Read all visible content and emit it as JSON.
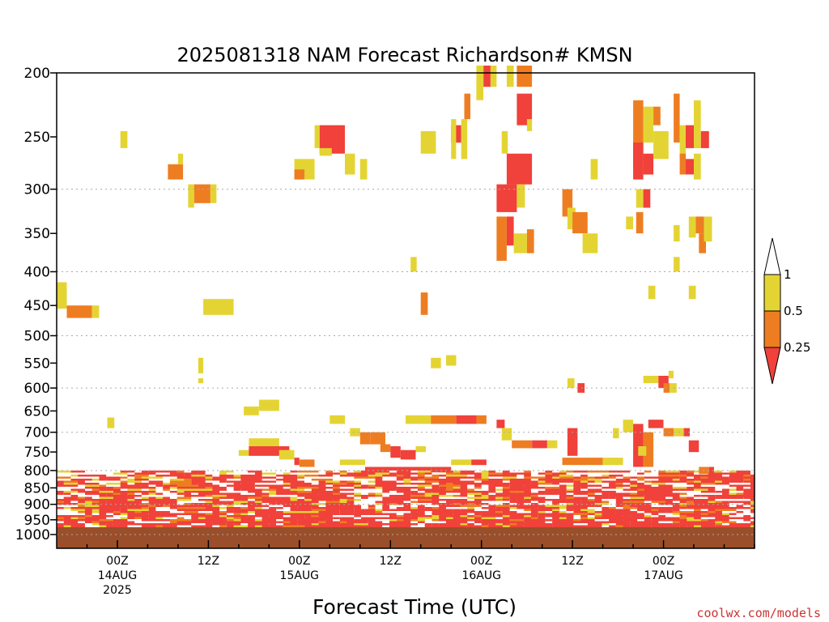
{
  "chart_data": {
    "type": "heatmap",
    "title": "2025081318 NAM Forecast Richardson# KMSN",
    "xlabel": "Forecast Time (UTC)",
    "credit": "coolwx.com/models",
    "y_scale": "log-pressure",
    "ylim": [
      1000,
      200
    ],
    "y_ticks": [
      "200",
      "250",
      "300",
      "350",
      "400",
      "450",
      "500",
      "550",
      "600",
      "650",
      "700",
      "750",
      "800",
      "850",
      "900",
      "950",
      "1000"
    ],
    "y_gridlines": [
      "300",
      "400",
      "500",
      "600",
      "700",
      "800",
      "900",
      "1000"
    ],
    "x_range_hours": [
      -6,
      63
    ],
    "x_ticks": [
      {
        "hour": 0,
        "lines": [
          "00Z",
          "14AUG",
          "2025"
        ]
      },
      {
        "hour": 9,
        "lines": [
          "12Z"
        ]
      },
      {
        "hour": 18,
        "lines": [
          "00Z",
          "15AUG"
        ]
      },
      {
        "hour": 27,
        "lines": [
          "12Z"
        ]
      },
      {
        "hour": 36,
        "lines": [
          "00Z",
          "16AUG"
        ]
      },
      {
        "hour": 45,
        "lines": [
          "12Z"
        ]
      },
      {
        "hour": 54,
        "lines": [
          "00Z",
          "17AUG"
        ]
      }
    ],
    "colorbar": {
      "levels": [
        "0.25",
        "0.5",
        "1"
      ],
      "colors": {
        "lt_0.25": "#f0413a",
        "0.25_0.5": "#ee7d22",
        "0.5_1": "#e4d433",
        "gt_1": "#ffffff"
      }
    },
    "ground_color": "#9a4f2a",
    "ground_top_hpa": 975,
    "cells": [
      {
        "h": -6,
        "h2": -5,
        "p1": 455,
        "p2": 415,
        "c": "y"
      },
      {
        "h": -5,
        "h2": -2.5,
        "p1": 470,
        "p2": 450,
        "c": "o"
      },
      {
        "h": -2.5,
        "h2": -1.8,
        "p1": 470,
        "p2": 450,
        "c": "y"
      },
      {
        "h": -1,
        "h2": -0.3,
        "p1": 665,
        "p2": 690,
        "c": "y"
      },
      {
        "h": 0.3,
        "h2": 1,
        "p1": 245,
        "p2": 260,
        "c": "y"
      },
      {
        "h": 5,
        "h2": 6.5,
        "p1": 275,
        "p2": 290,
        "c": "o"
      },
      {
        "h": 6,
        "h2": 6.5,
        "p1": 265,
        "p2": 275,
        "c": "y"
      },
      {
        "h": 7,
        "h2": 7.6,
        "p1": 295,
        "p2": 320,
        "c": "y"
      },
      {
        "h": 7.6,
        "h2": 9.2,
        "p1": 295,
        "p2": 315,
        "c": "o"
      },
      {
        "h": 9.2,
        "h2": 9.8,
        "p1": 295,
        "p2": 315,
        "c": "y"
      },
      {
        "h": 8,
        "h2": 8.5,
        "p1": 540,
        "p2": 570,
        "c": "y"
      },
      {
        "h": 8,
        "h2": 8.5,
        "p1": 580,
        "p2": 590,
        "c": "y"
      },
      {
        "h": 8.5,
        "h2": 11.5,
        "p1": 440,
        "p2": 465,
        "c": "y"
      },
      {
        "h": 12.5,
        "h2": 14,
        "p1": 640,
        "p2": 660,
        "c": "y"
      },
      {
        "h": 14,
        "h2": 16,
        "p1": 625,
        "p2": 650,
        "c": "y"
      },
      {
        "h": 12,
        "h2": 17,
        "p1": 745,
        "p2": 760,
        "c": "y"
      },
      {
        "h": 13,
        "h2": 16,
        "p1": 715,
        "p2": 745,
        "c": "y"
      },
      {
        "h": 13,
        "h2": 17,
        "p1": 735,
        "p2": 760,
        "c": "r"
      },
      {
        "h": 16,
        "h2": 17.5,
        "p1": 745,
        "p2": 770,
        "c": "y"
      },
      {
        "h": 17.5,
        "h2": 18,
        "p1": 765,
        "p2": 785,
        "c": "r"
      },
      {
        "h": 18,
        "h2": 19.5,
        "p1": 770,
        "p2": 790,
        "c": "o"
      },
      {
        "h": 17.5,
        "h2": 19.5,
        "p1": 270,
        "p2": 290,
        "c": "y"
      },
      {
        "h": 17.5,
        "h2": 18.5,
        "p1": 280,
        "p2": 290,
        "c": "o"
      },
      {
        "h": 19.5,
        "h2": 20,
        "p1": 240,
        "p2": 260,
        "c": "y"
      },
      {
        "h": 20,
        "h2": 22.5,
        "p1": 240,
        "p2": 265,
        "c": "r"
      },
      {
        "h": 20,
        "h2": 21.2,
        "p1": 260,
        "p2": 267,
        "c": "y"
      },
      {
        "h": 22.5,
        "h2": 23.5,
        "p1": 265,
        "p2": 285,
        "c": "y"
      },
      {
        "h": 24,
        "h2": 24.7,
        "p1": 270,
        "p2": 290,
        "c": "y"
      },
      {
        "h": 21,
        "h2": 22.5,
        "p1": 660,
        "p2": 680,
        "c": "y"
      },
      {
        "h": 23,
        "h2": 24,
        "p1": 690,
        "p2": 710,
        "c": "y"
      },
      {
        "h": 24,
        "h2": 25,
        "p1": 700,
        "p2": 730,
        "c": "o"
      },
      {
        "h": 25,
        "h2": 26.5,
        "p1": 700,
        "p2": 730,
        "c": "o"
      },
      {
        "h": 26,
        "h2": 27,
        "p1": 730,
        "p2": 750,
        "c": "o"
      },
      {
        "h": 27,
        "h2": 28,
        "p1": 735,
        "p2": 765,
        "c": "r"
      },
      {
        "h": 28,
        "h2": 29.5,
        "p1": 745,
        "p2": 770,
        "c": "r"
      },
      {
        "h": 29.5,
        "h2": 30.5,
        "p1": 735,
        "p2": 750,
        "c": "y"
      },
      {
        "h": 22,
        "h2": 24.5,
        "p1": 770,
        "p2": 785,
        "c": "y"
      },
      {
        "h": 24.5,
        "h2": 31,
        "p1": 790,
        "p2": 800,
        "c": "r"
      },
      {
        "h": 29,
        "h2": 29.6,
        "p1": 380,
        "p2": 400,
        "c": "y"
      },
      {
        "h": 30,
        "h2": 31.5,
        "p1": 245,
        "p2": 265,
        "c": "y"
      },
      {
        "h": 30,
        "h2": 30.7,
        "p1": 430,
        "p2": 465,
        "c": "o"
      },
      {
        "h": 31,
        "h2": 32,
        "p1": 540,
        "p2": 560,
        "c": "y"
      },
      {
        "h": 32.5,
        "h2": 33.5,
        "p1": 535,
        "p2": 555,
        "c": "y"
      },
      {
        "h": 28.5,
        "h2": 31,
        "p1": 660,
        "p2": 680,
        "c": "y"
      },
      {
        "h": 31,
        "h2": 33.5,
        "p1": 660,
        "p2": 680,
        "c": "o"
      },
      {
        "h": 33.5,
        "h2": 35.5,
        "p1": 660,
        "p2": 680,
        "c": "r"
      },
      {
        "h": 35.5,
        "h2": 36.5,
        "p1": 660,
        "p2": 680,
        "c": "o"
      },
      {
        "h": 31,
        "h2": 33,
        "p1": 790,
        "p2": 805,
        "c": "r"
      },
      {
        "h": 33,
        "h2": 35,
        "p1": 770,
        "p2": 785,
        "c": "y"
      },
      {
        "h": 35,
        "h2": 36.5,
        "p1": 770,
        "p2": 785,
        "c": "r"
      },
      {
        "h": 33,
        "h2": 34,
        "p1": 240,
        "p2": 255,
        "c": "r"
      },
      {
        "h": 33,
        "h2": 33.5,
        "p1": 235,
        "p2": 270,
        "c": "y"
      },
      {
        "h": 34,
        "h2": 34.6,
        "p1": 235,
        "p2": 270,
        "c": "y"
      },
      {
        "h": 34.3,
        "h2": 34.9,
        "p1": 215,
        "p2": 235,
        "c": "o"
      },
      {
        "h": 35.5,
        "h2": 36.2,
        "p1": 195,
        "p2": 220,
        "c": "y"
      },
      {
        "h": 36.2,
        "h2": 36.9,
        "p1": 195,
        "p2": 210,
        "c": "r"
      },
      {
        "h": 36.9,
        "h2": 37.5,
        "p1": 195,
        "p2": 210,
        "c": "y"
      },
      {
        "h": 38.5,
        "h2": 39.2,
        "p1": 195,
        "p2": 210,
        "c": "y"
      },
      {
        "h": 39.5,
        "h2": 41,
        "p1": 195,
        "p2": 210,
        "c": "o"
      },
      {
        "h": 39.5,
        "h2": 41,
        "p1": 215,
        "p2": 240,
        "c": "r"
      },
      {
        "h": 40.5,
        "h2": 41,
        "p1": 235,
        "p2": 245,
        "c": "y"
      },
      {
        "h": 38,
        "h2": 38.6,
        "p1": 245,
        "p2": 265,
        "c": "y"
      },
      {
        "h": 38.5,
        "h2": 41,
        "p1": 265,
        "p2": 295,
        "c": "r"
      },
      {
        "h": 37.5,
        "h2": 39.5,
        "p1": 295,
        "p2": 325,
        "c": "r"
      },
      {
        "h": 39.5,
        "h2": 40.3,
        "p1": 295,
        "p2": 320,
        "c": "y"
      },
      {
        "h": 37.5,
        "h2": 38.5,
        "p1": 330,
        "p2": 385,
        "c": "o"
      },
      {
        "h": 38.5,
        "h2": 39.2,
        "p1": 330,
        "p2": 365,
        "c": "r"
      },
      {
        "h": 39.2,
        "h2": 40.5,
        "p1": 350,
        "p2": 375,
        "c": "y"
      },
      {
        "h": 40.5,
        "h2": 41.2,
        "p1": 345,
        "p2": 375,
        "c": "o"
      },
      {
        "h": 37.5,
        "h2": 38.3,
        "p1": 670,
        "p2": 690,
        "c": "r"
      },
      {
        "h": 38,
        "h2": 39,
        "p1": 690,
        "p2": 720,
        "c": "y"
      },
      {
        "h": 39,
        "h2": 41,
        "p1": 720,
        "p2": 740,
        "c": "o"
      },
      {
        "h": 41,
        "h2": 42.5,
        "p1": 720,
        "p2": 740,
        "c": "r"
      },
      {
        "h": 42.5,
        "h2": 43.5,
        "p1": 720,
        "p2": 740,
        "c": "y"
      },
      {
        "h": 44,
        "h2": 45,
        "p1": 300,
        "p2": 330,
        "c": "o"
      },
      {
        "h": 44.5,
        "h2": 45.3,
        "p1": 320,
        "p2": 345,
        "c": "y"
      },
      {
        "h": 45,
        "h2": 46.5,
        "p1": 325,
        "p2": 350,
        "c": "o"
      },
      {
        "h": 46,
        "h2": 47.5,
        "p1": 350,
        "p2": 375,
        "c": "y"
      },
      {
        "h": 46.8,
        "h2": 47.5,
        "p1": 270,
        "p2": 290,
        "c": "y"
      },
      {
        "h": 44.5,
        "h2": 45.2,
        "p1": 580,
        "p2": 600,
        "c": "y"
      },
      {
        "h": 45.5,
        "h2": 46.2,
        "p1": 590,
        "p2": 610,
        "c": "r"
      },
      {
        "h": 44.5,
        "h2": 45.5,
        "p1": 690,
        "p2": 760,
        "c": "r"
      },
      {
        "h": 44,
        "h2": 48,
        "p1": 765,
        "p2": 785,
        "c": "o"
      },
      {
        "h": 48,
        "h2": 50,
        "p1": 765,
        "p2": 785,
        "c": "y"
      },
      {
        "h": 49,
        "h2": 49.6,
        "p1": 690,
        "p2": 715,
        "c": "y"
      },
      {
        "h": 50,
        "h2": 51,
        "p1": 670,
        "p2": 700,
        "c": "y"
      },
      {
        "h": 51,
        "h2": 52,
        "p1": 680,
        "p2": 790,
        "c": "r"
      },
      {
        "h": 52,
        "h2": 53,
        "p1": 700,
        "p2": 790,
        "c": "o"
      },
      {
        "h": 50.3,
        "h2": 51,
        "p1": 330,
        "p2": 345,
        "c": "y"
      },
      {
        "h": 51,
        "h2": 52,
        "p1": 220,
        "p2": 280,
        "c": "o"
      },
      {
        "h": 51,
        "h2": 52,
        "p1": 255,
        "p2": 290,
        "c": "r"
      },
      {
        "h": 52,
        "h2": 53,
        "p1": 225,
        "p2": 255,
        "c": "y"
      },
      {
        "h": 52,
        "h2": 53,
        "p1": 265,
        "p2": 285,
        "c": "r"
      },
      {
        "h": 53,
        "h2": 54.5,
        "p1": 245,
        "p2": 270,
        "c": "y"
      },
      {
        "h": 53,
        "h2": 53.7,
        "p1": 225,
        "p2": 240,
        "c": "o"
      },
      {
        "h": 51.3,
        "h2": 52,
        "p1": 300,
        "p2": 320,
        "c": "y"
      },
      {
        "h": 52,
        "h2": 52.7,
        "p1": 300,
        "p2": 320,
        "c": "r"
      },
      {
        "h": 51.3,
        "h2": 52,
        "p1": 325,
        "p2": 350,
        "c": "o"
      },
      {
        "h": 52.5,
        "h2": 53.2,
        "p1": 420,
        "p2": 440,
        "c": "y"
      },
      {
        "h": 52,
        "h2": 53.5,
        "p1": 575,
        "p2": 590,
        "c": "y"
      },
      {
        "h": 53.5,
        "h2": 54.5,
        "p1": 575,
        "p2": 600,
        "c": "r"
      },
      {
        "h": 54.5,
        "h2": 55,
        "p1": 565,
        "p2": 580,
        "c": "y"
      },
      {
        "h": 54,
        "h2": 54.6,
        "p1": 590,
        "p2": 610,
        "c": "o"
      },
      {
        "h": 54.6,
        "h2": 55.3,
        "p1": 590,
        "p2": 610,
        "c": "y"
      },
      {
        "h": 51.5,
        "h2": 52.3,
        "p1": 735,
        "p2": 760,
        "c": "y"
      },
      {
        "h": 52.5,
        "h2": 54,
        "p1": 670,
        "p2": 690,
        "c": "r"
      },
      {
        "h": 54,
        "h2": 55,
        "p1": 690,
        "p2": 710,
        "c": "o"
      },
      {
        "h": 55,
        "h2": 56,
        "p1": 690,
        "p2": 710,
        "c": "y"
      },
      {
        "h": 56,
        "h2": 56.6,
        "p1": 690,
        "p2": 710,
        "c": "r"
      },
      {
        "h": 55,
        "h2": 55.6,
        "p1": 215,
        "p2": 255,
        "c": "o"
      },
      {
        "h": 55.6,
        "h2": 56.2,
        "p1": 240,
        "p2": 270,
        "c": "y"
      },
      {
        "h": 56.2,
        "h2": 57,
        "p1": 240,
        "p2": 260,
        "c": "r"
      },
      {
        "h": 57,
        "h2": 57.7,
        "p1": 220,
        "p2": 260,
        "c": "y"
      },
      {
        "h": 55.6,
        "h2": 56.2,
        "p1": 265,
        "p2": 285,
        "c": "o"
      },
      {
        "h": 56.2,
        "h2": 57,
        "p1": 270,
        "p2": 285,
        "c": "r"
      },
      {
        "h": 57,
        "h2": 57.7,
        "p1": 265,
        "p2": 290,
        "c": "y"
      },
      {
        "h": 57.7,
        "h2": 58.5,
        "p1": 245,
        "p2": 260,
        "c": "r"
      },
      {
        "h": 56.5,
        "h2": 57.2,
        "p1": 330,
        "p2": 355,
        "c": "y"
      },
      {
        "h": 57.2,
        "h2": 58,
        "p1": 330,
        "p2": 350,
        "c": "o"
      },
      {
        "h": 57.5,
        "h2": 58.2,
        "p1": 350,
        "p2": 375,
        "c": "o"
      },
      {
        "h": 58,
        "h2": 58.8,
        "p1": 330,
        "p2": 360,
        "c": "y"
      },
      {
        "h": 55,
        "h2": 55.6,
        "p1": 340,
        "p2": 360,
        "c": "y"
      },
      {
        "h": 55,
        "h2": 55.6,
        "p1": 380,
        "p2": 400,
        "c": "y"
      },
      {
        "h": 56.5,
        "h2": 57.2,
        "p1": 420,
        "p2": 440,
        "c": "y"
      },
      {
        "h": 56.5,
        "h2": 57.5,
        "p1": 720,
        "p2": 750,
        "c": "r"
      },
      {
        "h": 57.5,
        "h2": 58.5,
        "p1": 790,
        "p2": 810,
        "c": "o"
      },
      {
        "h": 58.5,
        "h2": 59,
        "p1": 790,
        "p2": 810,
        "c": "r"
      }
    ],
    "lowlevel": {
      "p_top": 800,
      "p_bottom": 975,
      "rows": 28,
      "seed": 20250813,
      "weights": {
        "white": 0.55,
        "r": 0.31,
        "o": 0.07,
        "y": 0.07
      }
    }
  }
}
